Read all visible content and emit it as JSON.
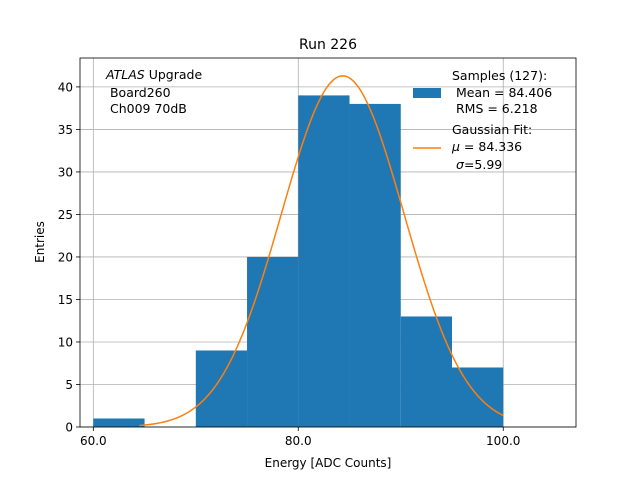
{
  "chart_data": {
    "type": "bar",
    "title": "Run 226",
    "xlabel": "Energy [ADC Counts]",
    "ylabel": "Entries",
    "xlim": [
      58.7,
      107.1
    ],
    "ylim": [
      0,
      43.4
    ],
    "grid": true,
    "xticks": [
      60.0,
      80.0,
      100.0
    ],
    "xtick_labels": [
      "60.0",
      "80.0",
      "100.0"
    ],
    "yticks": [
      0,
      5,
      10,
      15,
      20,
      25,
      30,
      35,
      40
    ],
    "ytick_labels": [
      "0",
      "5",
      "10",
      "15",
      "20",
      "25",
      "30",
      "35",
      "40"
    ],
    "bins": [
      {
        "x0": 60,
        "x1": 65,
        "count": 1
      },
      {
        "x0": 65,
        "x1": 70,
        "count": 0
      },
      {
        "x0": 70,
        "x1": 75,
        "count": 9
      },
      {
        "x0": 75,
        "x1": 80,
        "count": 20
      },
      {
        "x0": 80,
        "x1": 85,
        "count": 39
      },
      {
        "x0": 85,
        "x1": 90,
        "count": 38
      },
      {
        "x0": 90,
        "x1": 95,
        "count": 13
      },
      {
        "x0": 95,
        "x1": 100,
        "count": 7
      }
    ],
    "fit": {
      "name": "Gaussian Fit",
      "mu": 84.336,
      "sigma": 5.99,
      "amplitude": 41.3,
      "x_range": [
        64.5,
        100.0
      ]
    },
    "colors": {
      "bars": "#1f77b4",
      "fit": "#ff7f0e"
    },
    "annotation": {
      "italic_part": "ATLAS",
      "line1_rest": " Upgrade",
      "line2": " Board260",
      "line3": " Ch009 70dB"
    },
    "legend": {
      "position": "top-right",
      "samples": {
        "line1": "Samples (127):",
        "line2": " Mean = 84.406",
        "line3": " RMS = 6.218"
      },
      "fit": {
        "line1": "Gaussian Fit:",
        "line2_symbol": "μ",
        "line2_rest": " = 84.336",
        "line3_symbol": "σ",
        "line3_rest": "=5.99"
      }
    }
  }
}
